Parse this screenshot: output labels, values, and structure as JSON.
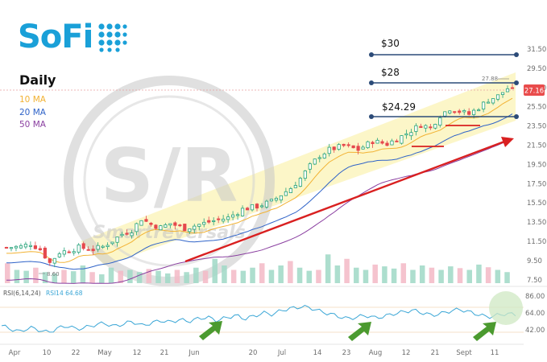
{
  "brand": {
    "name": "SoFi",
    "color": "#1aa0d8"
  },
  "header": {
    "timeframe": "Daily"
  },
  "legend": [
    {
      "label": "10 MA",
      "color": "#f2b233"
    },
    {
      "label": "20 MA",
      "color": "#2f63c8"
    },
    {
      "label": "50 MA",
      "color": "#8a3fa0"
    }
  ],
  "watermark": {
    "text": "S/R",
    "subtext": "Smartreversals"
  },
  "levels": [
    {
      "label": "$30",
      "value": 30
    },
    {
      "label": "$28",
      "value": 28
    },
    {
      "label": "$24.29",
      "value": 24.29
    }
  ],
  "annotations": {
    "high_label": "27.88",
    "low_label": "8.60",
    "last_price": "27.16"
  },
  "chart_data": [
    {
      "type": "candlestick",
      "y_ticks": [
        "31.50",
        "29.50",
        "27.50",
        "25.50",
        "23.50",
        "21.50",
        "19.50",
        "17.50",
        "15.50",
        "13.50",
        "11.50",
        "9.50",
        "7.50"
      ],
      "ylim": [
        7.5,
        31.5
      ],
      "x_ticks": [
        "Apr",
        "10",
        "22",
        "May",
        "12",
        "21",
        "Jun",
        "20",
        "Jul",
        "14",
        "23",
        "Aug",
        "12",
        "21",
        "Sept",
        "11"
      ],
      "close_path": [
        [
          0,
          10.8
        ],
        [
          3,
          10.9
        ],
        [
          5,
          11.2
        ],
        [
          7,
          10.6
        ],
        [
          9,
          9.2
        ],
        [
          11,
          10.3
        ],
        [
          13,
          10.5
        ],
        [
          15,
          10.8
        ],
        [
          18,
          10.6
        ],
        [
          20,
          10.9
        ],
        [
          22,
          11.5
        ],
        [
          24,
          12.2
        ],
        [
          26,
          12.6
        ],
        [
          28,
          13.8
        ],
        [
          30,
          13.2
        ],
        [
          32,
          12.9
        ],
        [
          34,
          13.3
        ],
        [
          37,
          12.8
        ],
        [
          40,
          13.2
        ],
        [
          43,
          13.6
        ],
        [
          46,
          13.9
        ],
        [
          49,
          14.8
        ],
        [
          52,
          15.1
        ],
        [
          55,
          15.6
        ],
        [
          57,
          16.3
        ],
        [
          59,
          17.0
        ],
        [
          61,
          18.0
        ],
        [
          63,
          19.3
        ],
        [
          65,
          20.4
        ],
        [
          67,
          21.0
        ],
        [
          70,
          21.4
        ],
        [
          73,
          21.0
        ],
        [
          76,
          21.9
        ],
        [
          79,
          21.6
        ],
        [
          82,
          22.4
        ],
        [
          84,
          23.0
        ],
        [
          86,
          23.6
        ],
        [
          88,
          23.3
        ],
        [
          90,
          24.6
        ],
        [
          92,
          25.3
        ],
        [
          94,
          25.0
        ],
        [
          96,
          24.7
        ],
        [
          98,
          25.4
        ],
        [
          100,
          26.2
        ],
        [
          102,
          26.6
        ],
        [
          104,
          27.4
        ],
        [
          105,
          27.16
        ]
      ],
      "volume_heights": [
        0.45,
        0.3,
        0.28,
        0.35,
        0.25,
        0.22,
        0.3,
        0.27,
        0.4,
        0.25,
        0.2,
        0.35,
        0.28,
        0.3,
        0.25,
        0.32,
        0.28,
        0.22,
        0.3,
        0.25,
        0.35,
        0.28,
        0.55,
        0.4,
        0.3,
        0.28,
        0.35,
        0.45,
        0.3,
        0.4,
        0.5,
        0.35,
        0.28,
        0.3,
        0.65,
        0.4,
        0.55,
        0.35,
        0.3,
        0.42,
        0.38,
        0.33,
        0.45,
        0.3,
        0.4,
        0.35,
        0.3,
        0.38,
        0.34,
        0.3,
        0.42,
        0.36,
        0.3,
        0.25
      ],
      "ma": [
        {
          "name": "10 MA",
          "offset": -0.6,
          "window": 2
        },
        {
          "name": "20 MA",
          "offset": -1.6,
          "window": 4
        },
        {
          "name": "50 MA",
          "offset": -3.4,
          "window": 8
        }
      ]
    },
    {
      "type": "line",
      "title": "RSI(6,14,24)",
      "series_label": "RSI14 64.68",
      "y_ticks": [
        "86.00",
        "64.00",
        "42.00"
      ],
      "ylim": [
        36,
        92
      ],
      "values": [
        52,
        48,
        45,
        50,
        47,
        44,
        49,
        52,
        48,
        50,
        53,
        55,
        51,
        54,
        57,
        52,
        55,
        58,
        56,
        59,
        57,
        60,
        62,
        58,
        61,
        64,
        60,
        63,
        67,
        65,
        70,
        72,
        74,
        73,
        69,
        66,
        63,
        60,
        62,
        64,
        61,
        63,
        66,
        68,
        70,
        67,
        64,
        66,
        69,
        71,
        68,
        65,
        62,
        64,
        66,
        64.7
      ]
    }
  ]
}
